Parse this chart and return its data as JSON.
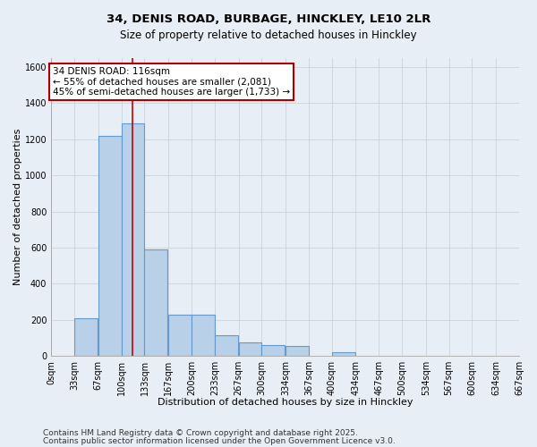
{
  "title_line1": "34, DENIS ROAD, BURBAGE, HINCKLEY, LE10 2LR",
  "title_line2": "Size of property relative to detached houses in Hinckley",
  "xlabel": "Distribution of detached houses by size in Hinckley",
  "ylabel": "Number of detached properties",
  "bar_bins": [
    0,
    33,
    67,
    100,
    133,
    167,
    200,
    233,
    267,
    300,
    334,
    367,
    400,
    434,
    467,
    500,
    534,
    567,
    600,
    634,
    667
  ],
  "bar_heights": [
    0,
    210,
    1220,
    1290,
    590,
    230,
    230,
    115,
    75,
    60,
    55,
    0,
    20,
    0,
    0,
    0,
    0,
    0,
    0,
    0
  ],
  "bar_color": "#b8d0e8",
  "bar_edgecolor": "#6699cc",
  "vline_x": 116,
  "vline_color": "#cc0000",
  "annotation_title": "34 DENIS ROAD: 116sqm",
  "annotation_line2": "← 55% of detached houses are smaller (2,081)",
  "annotation_line3": "45% of semi-detached houses are larger (1,733) →",
  "annotation_box_edgecolor": "#aa0000",
  "grid_color": "#c8d4e0",
  "background_color": "#e8eef5",
  "ylim": [
    0,
    1650
  ],
  "yticks": [
    0,
    200,
    400,
    600,
    800,
    1000,
    1200,
    1400,
    1600
  ],
  "tick_labels": [
    "0sqm",
    "33sqm",
    "67sqm",
    "100sqm",
    "133sqm",
    "167sqm",
    "200sqm",
    "233sqm",
    "267sqm",
    "300sqm",
    "334sqm",
    "367sqm",
    "400sqm",
    "434sqm",
    "467sqm",
    "500sqm",
    "534sqm",
    "567sqm",
    "600sqm",
    "634sqm",
    "667sqm"
  ],
  "footnote1": "Contains HM Land Registry data © Crown copyright and database right 2025.",
  "footnote2": "Contains public sector information licensed under the Open Government Licence v3.0.",
  "title_fontsize": 9.5,
  "subtitle_fontsize": 8.5,
  "axis_label_fontsize": 8,
  "tick_fontsize": 7,
  "annotation_fontsize": 7.5,
  "footnote_fontsize": 6.5
}
